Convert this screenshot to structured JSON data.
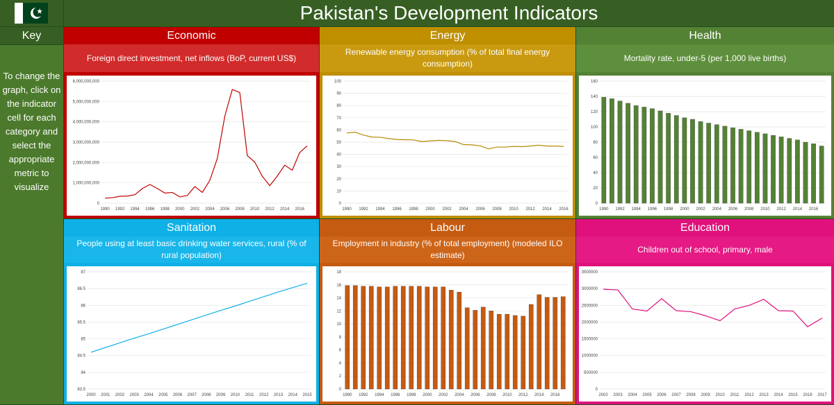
{
  "page": {
    "title": "Pakistan's Development Indicators",
    "key_label": "Key",
    "key_text": "To change the graph, click on the indicator cell for each category and select the appropriate metric to visualize"
  },
  "panels": [
    {
      "id": "economic",
      "category": "Economic",
      "indicator": "Foreign direct investment, net inflows (BoP, current US$)",
      "color": "#c00000",
      "line": "#c00000",
      "light": "#d12b2b"
    },
    {
      "id": "energy",
      "category": "Energy",
      "indicator": "Renewable energy consumption (% of total final energy consumption)",
      "color": "#bf8f00",
      "line": "#b38a00",
      "light": "#c99a10"
    },
    {
      "id": "health",
      "category": "Health",
      "indicator": "Mortality rate, under-5 (per 1,000 live births)",
      "color": "#548235",
      "line": "#548235",
      "light": "#5e8f3c"
    },
    {
      "id": "sanitation",
      "category": "Sanitation",
      "indicator": "People using at least basic drinking water services, rural (% of rural population)",
      "color": "#0eb0e6",
      "line": "#0eb0e6",
      "light": "#19b6ea"
    },
    {
      "id": "labour",
      "category": "Labour",
      "indicator": "Employment in industry (% of total employment) (modeled ILO estimate)",
      "color": "#c55a11",
      "line": "#c55a11",
      "light": "#cd6519"
    },
    {
      "id": "education",
      "category": "Education",
      "indicator": "Children out of school, primary, male",
      "color": "#e0117c",
      "line": "#e0117c",
      "light": "#e51a84"
    }
  ],
  "chart_data": [
    {
      "id": "economic",
      "type": "line",
      "x": [
        1990,
        1991,
        1992,
        1993,
        1994,
        1995,
        1996,
        1997,
        1998,
        1999,
        2000,
        2001,
        2002,
        2003,
        2004,
        2005,
        2006,
        2007,
        2008,
        2009,
        2010,
        2011,
        2012,
        2013,
        2014,
        2015,
        2016,
        2017
      ],
      "values": [
        250000000,
        270000000,
        340000000,
        350000000,
        420000000,
        720000000,
        920000000,
        720000000,
        500000000,
        530000000,
        310000000,
        380000000,
        820000000,
        530000000,
        1120000000,
        2200000000,
        4270000000,
        5590000000,
        5440000000,
        2340000000,
        2020000000,
        1330000000,
        860000000,
        1330000000,
        1870000000,
        1620000000,
        2490000000,
        2820000000
      ],
      "ylim": [
        0,
        6000000000
      ],
      "yticks": [
        "0",
        "1,000,000,000",
        "2,000,000,000",
        "3,000,000,000",
        "4,000,000,000",
        "5,000,000,000",
        "6,000,000,000"
      ],
      "xticks": [
        "1990",
        "1992",
        "1994",
        "1996",
        "1998",
        "2000",
        "2002",
        "2004",
        "2006",
        "2008",
        "2010",
        "2012",
        "2014",
        "2016"
      ]
    },
    {
      "id": "energy",
      "type": "line",
      "x": [
        1990,
        1991,
        1992,
        1993,
        1994,
        1995,
        1996,
        1997,
        1998,
        1999,
        2000,
        2001,
        2002,
        2003,
        2004,
        2005,
        2006,
        2007,
        2008,
        2009,
        2010,
        2011,
        2012,
        2013,
        2014,
        2015,
        2016
      ],
      "values": [
        57.5,
        58.2,
        55.8,
        54.2,
        54.0,
        53.0,
        52.2,
        52.0,
        51.8,
        50.5,
        51.0,
        51.5,
        51.2,
        50.5,
        48.0,
        47.8,
        47.0,
        44.5,
        46.0,
        46.0,
        46.5,
        46.3,
        46.8,
        47.5,
        46.8,
        46.8,
        46.5
      ],
      "ylim": [
        0,
        100
      ],
      "yticks": [
        "0",
        "10",
        "20",
        "30",
        "40",
        "50",
        "60",
        "70",
        "80",
        "90",
        "100"
      ],
      "xticks": [
        "1990",
        "1992",
        "1994",
        "1996",
        "1998",
        "2000",
        "2002",
        "2004",
        "2006",
        "2008",
        "2010",
        "2012",
        "2014",
        "2016"
      ]
    },
    {
      "id": "health",
      "type": "bar",
      "x": [
        1990,
        1991,
        1992,
        1993,
        1994,
        1995,
        1996,
        1997,
        1998,
        1999,
        2000,
        2001,
        2002,
        2003,
        2004,
        2005,
        2006,
        2007,
        2008,
        2009,
        2010,
        2011,
        2012,
        2013,
        2014,
        2015,
        2016,
        2017
      ],
      "values": [
        139,
        137,
        134,
        131,
        128,
        126,
        124,
        121,
        118,
        115,
        112,
        110,
        107,
        105,
        103,
        101,
        99,
        97,
        95,
        93,
        91,
        89,
        87,
        85,
        83,
        80,
        78,
        75
      ],
      "ylim": [
        0,
        160
      ],
      "yticks": [
        "0",
        "20",
        "40",
        "60",
        "80",
        "100",
        "120",
        "140",
        "160"
      ],
      "xticks": [
        "1990",
        "1992",
        "1994",
        "1996",
        "1998",
        "2000",
        "2002",
        "2004",
        "2006",
        "2008",
        "2010",
        "2012",
        "2014",
        "2016"
      ]
    },
    {
      "id": "sanitation",
      "type": "line",
      "x": [
        2000,
        2001,
        2002,
        2003,
        2004,
        2005,
        2006,
        2007,
        2008,
        2009,
        2010,
        2011,
        2012,
        2013,
        2014,
        2015
      ],
      "values": [
        84.6,
        84.74,
        84.88,
        85.02,
        85.15,
        85.29,
        85.43,
        85.57,
        85.71,
        85.85,
        85.98,
        86.12,
        86.26,
        86.4,
        86.53,
        86.66
      ],
      "ylim": [
        83.5,
        87
      ],
      "yticks": [
        "83.5",
        "84",
        "84.5",
        "85",
        "85.5",
        "86",
        "86.5",
        "87"
      ],
      "xticks": [
        "2000",
        "2001",
        "2002",
        "2003",
        "2004",
        "2005",
        "2006",
        "2007",
        "2008",
        "2009",
        "2010",
        "2011",
        "2012",
        "2013",
        "2014",
        "2015"
      ]
    },
    {
      "id": "labour",
      "type": "bar",
      "x": [
        1990,
        1991,
        1992,
        1993,
        1994,
        1995,
        1996,
        1997,
        1998,
        1999,
        2000,
        2001,
        2002,
        2003,
        2004,
        2005,
        2006,
        2007,
        2008,
        2009,
        2010,
        2011,
        2012,
        2013,
        2014,
        2015,
        2016,
        2017
      ],
      "values": [
        15.9,
        15.9,
        15.8,
        15.8,
        15.7,
        15.7,
        15.8,
        15.8,
        15.8,
        15.8,
        15.7,
        15.7,
        15.7,
        15.2,
        14.9,
        12.5,
        12.1,
        12.6,
        12.0,
        11.5,
        11.5,
        11.3,
        11.2,
        13.0,
        14.5,
        14.1,
        14.1,
        14.2
      ],
      "ylim": [
        0,
        18
      ],
      "yticks": [
        "0",
        "2",
        "4",
        "6",
        "8",
        "10",
        "12",
        "14",
        "16",
        "18"
      ],
      "xticks": [
        "1990",
        "1992",
        "1994",
        "1996",
        "1998",
        "2000",
        "2002",
        "2004",
        "2006",
        "2008",
        "2010",
        "2012",
        "2014",
        "2016"
      ]
    },
    {
      "id": "education",
      "type": "line",
      "x": [
        2002,
        2003,
        2004,
        2005,
        2006,
        2007,
        2008,
        2009,
        2010,
        2011,
        2012,
        2013,
        2014,
        2015,
        2016,
        2017
      ],
      "values": [
        2980000,
        2960000,
        2390000,
        2330000,
        2700000,
        2340000,
        2310000,
        2190000,
        2040000,
        2390000,
        2500000,
        2680000,
        2340000,
        2330000,
        1860000,
        2120000
      ],
      "ylim": [
        0,
        3500000
      ],
      "yticks": [
        "0",
        "500000",
        "1000000",
        "1500000",
        "2000000",
        "2500000",
        "3000000",
        "3500000"
      ],
      "xticks": [
        "2002",
        "2003",
        "2004",
        "2005",
        "2006",
        "2007",
        "2008",
        "2009",
        "2010",
        "2011",
        "2012",
        "2013",
        "2014",
        "2015",
        "2016",
        "2017"
      ]
    }
  ]
}
